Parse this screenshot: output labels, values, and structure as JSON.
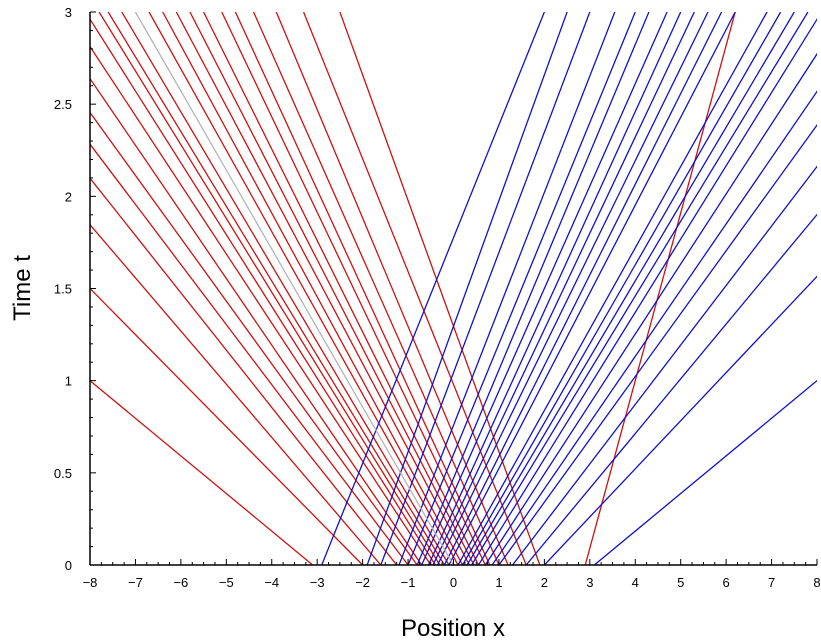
{
  "chart_data": {
    "type": "line",
    "xlabel": "Position x",
    "ylabel": "Time t",
    "xlim": [
      -8,
      8
    ],
    "ylim": [
      0,
      3
    ],
    "xticks": [
      -8,
      -7,
      -6,
      -5,
      -4,
      -3,
      -2,
      -1,
      0,
      1,
      2,
      3,
      4,
      5,
      6,
      7,
      8
    ],
    "yticks": [
      0,
      0.5,
      1,
      1.5,
      2,
      2.5,
      3
    ],
    "grid": false,
    "series": [
      {
        "group": "left-moving characteristics",
        "color": "#cc1111",
        "lines": [
          {
            "x0": 2.9,
            "x3": 6.2
          },
          {
            "x0": 1.9,
            "x3": -2.5
          },
          {
            "x0": 1.6,
            "x3": -3.3
          },
          {
            "x0": 1.2,
            "x3": -3.9
          },
          {
            "x0": 1.0,
            "x3": -4.4
          },
          {
            "x0": 0.8,
            "x3": -4.8
          },
          {
            "x0": 0.7,
            "x3": -5.1
          },
          {
            "x0": 0.55,
            "x3": -5.5
          },
          {
            "x0": 0.45,
            "x3": -5.8
          },
          {
            "x0": 0.35,
            "x3": -6.1
          },
          {
            "x0": 0.2,
            "x3": -6.4
          },
          {
            "x0": 0.1,
            "x3": -6.7
          },
          {
            "x0": -0.1,
            "x3": -7.3
          },
          {
            "x0": -0.2,
            "x3": -7.6
          },
          {
            "x0": -0.3,
            "x3": -7.8
          },
          {
            "x0": -0.4,
            "x3": -8.1
          },
          {
            "x0": -0.5,
            "x3": -8.5
          },
          {
            "x0": -0.7,
            "x3": -9.0
          },
          {
            "x0": -0.8,
            "x3": -9.6
          },
          {
            "x0": -1.0,
            "x3": -10.2
          },
          {
            "x0": -1.25,
            "x3": -10.9
          },
          {
            "x0": -1.6,
            "x3": -12.0
          },
          {
            "x0": -2.0,
            "x3": -14.0
          },
          {
            "x0": -3.1,
            "x3": -17.8
          }
        ]
      },
      {
        "group": "right-moving characteristics",
        "color": "#1111cc",
        "lines": [
          {
            "x0": -2.9,
            "x3": 2.0
          },
          {
            "x0": -1.9,
            "x3": 2.5
          },
          {
            "x0": -1.6,
            "x3": 3.0
          },
          {
            "x0": -1.2,
            "x3": 3.55
          },
          {
            "x0": -1.0,
            "x3": 4.0
          },
          {
            "x0": -0.8,
            "x3": 4.3
          },
          {
            "x0": -0.7,
            "x3": 4.7
          },
          {
            "x0": -0.55,
            "x3": 5.0
          },
          {
            "x0": -0.45,
            "x3": 5.3
          },
          {
            "x0": -0.35,
            "x3": 5.6
          },
          {
            "x0": -0.2,
            "x3": 5.9
          },
          {
            "x0": -0.1,
            "x3": 6.2
          },
          {
            "x0": 0.1,
            "x3": 6.9
          },
          {
            "x0": 0.2,
            "x3": 7.2
          },
          {
            "x0": 0.3,
            "x3": 7.5
          },
          {
            "x0": 0.4,
            "x3": 7.8
          },
          {
            "x0": 0.55,
            "x3": 8.1
          },
          {
            "x0": 0.7,
            "x3": 8.6
          },
          {
            "x0": 0.85,
            "x3": 9.2
          },
          {
            "x0": 1.0,
            "x3": 9.8
          },
          {
            "x0": 1.3,
            "x3": 10.6
          },
          {
            "x0": 1.6,
            "x3": 11.7
          },
          {
            "x0": 2.0,
            "x3": 13.5
          },
          {
            "x0": 3.1,
            "x3": 17.8
          }
        ]
      },
      {
        "group": "central characteristic",
        "color": "#b4b4b4",
        "lines": [
          {
            "x0": 0.0,
            "x3": -7.0
          }
        ]
      }
    ]
  }
}
